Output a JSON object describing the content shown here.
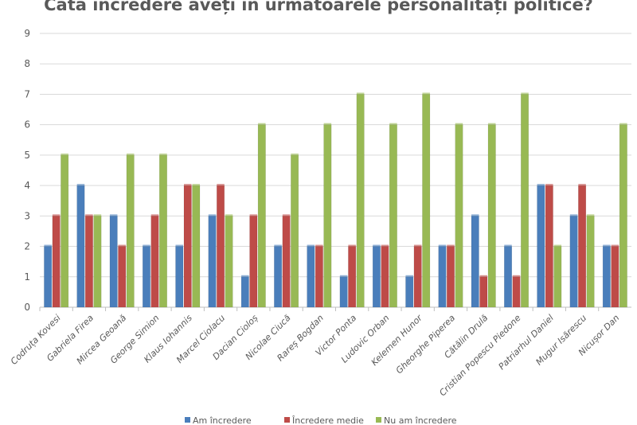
{
  "chart_data": {
    "type": "bar",
    "title": "Câtă încredere aveți în următoarele personalități politice?",
    "xlabel": "",
    "ylabel": "",
    "ylim": [
      0,
      9
    ],
    "yticks": [
      0,
      1,
      2,
      3,
      4,
      5,
      6,
      7,
      8,
      9
    ],
    "grid": true,
    "legend": "bottom",
    "categories": [
      "Codruța Kovesi",
      "Gabriela Firea",
      "Mircea Geoană",
      "George Simion",
      "Klaus Iohannis",
      "Marcel Ciolacu",
      "Dacian Cioloș",
      "Nicolae Ciucă",
      "Rareș Bogdan",
      "Victor Ponta",
      "Ludovic Orban",
      "Kelemen Hunor",
      "Gheorghe Piperea",
      "Cătălin Drulă",
      "Cristian Popescu Piedone",
      "Patriarhul Daniel",
      "Mugur Isărescu",
      "Nicușor Dan"
    ],
    "series": [
      {
        "name": "Am încredere",
        "color": "#4a7ebb",
        "values": [
          2,
          4,
          3,
          2,
          2,
          3,
          1,
          2,
          2,
          1,
          2,
          1,
          2,
          3,
          2,
          4,
          3,
          2
        ]
      },
      {
        "name": "Încredere medie",
        "color": "#be4b48",
        "values": [
          3,
          3,
          2,
          3,
          4,
          4,
          3,
          3,
          2,
          2,
          2,
          2,
          2,
          1,
          1,
          4,
          4,
          2
        ]
      },
      {
        "name": "Nu am încredere",
        "color": "#98b954",
        "values": [
          5,
          3,
          5,
          5,
          4,
          3,
          6,
          5,
          6,
          7,
          6,
          7,
          6,
          6,
          7,
          2,
          3,
          6
        ]
      }
    ]
  }
}
